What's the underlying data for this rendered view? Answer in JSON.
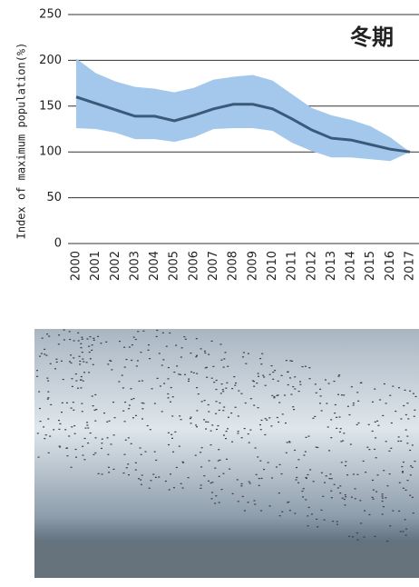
{
  "chart_data": {
    "type": "band-line",
    "title": "冬期",
    "y_label": "Index of maximum population(%)",
    "categories": [
      "2000",
      "2001",
      "2002",
      "2003",
      "2004",
      "2005",
      "2006",
      "2007",
      "2008",
      "2009",
      "2010",
      "2011",
      "2012",
      "2013",
      "2014",
      "2015",
      "2016",
      "2017"
    ],
    "values": [
      160,
      153,
      146,
      139,
      139,
      134,
      140,
      147,
      152,
      152,
      147,
      136,
      124,
      115,
      113,
      108,
      103,
      100
    ],
    "band": {
      "upper": [
        202,
        186,
        177,
        171,
        169,
        165,
        170,
        179,
        182,
        184,
        178,
        163,
        148,
        140,
        135,
        128,
        116,
        100
      ],
      "lower": [
        126,
        125,
        121,
        114,
        114,
        111,
        116,
        125,
        126,
        126,
        123,
        110,
        101,
        94,
        94,
        92,
        90,
        100
      ],
      "color": "#a3c8ec"
    },
    "color": "#3b5a7a",
    "ylim": [
      0,
      250
    ],
    "yticks": [
      0,
      50,
      100,
      150,
      200,
      250
    ],
    "grid": true
  }
}
